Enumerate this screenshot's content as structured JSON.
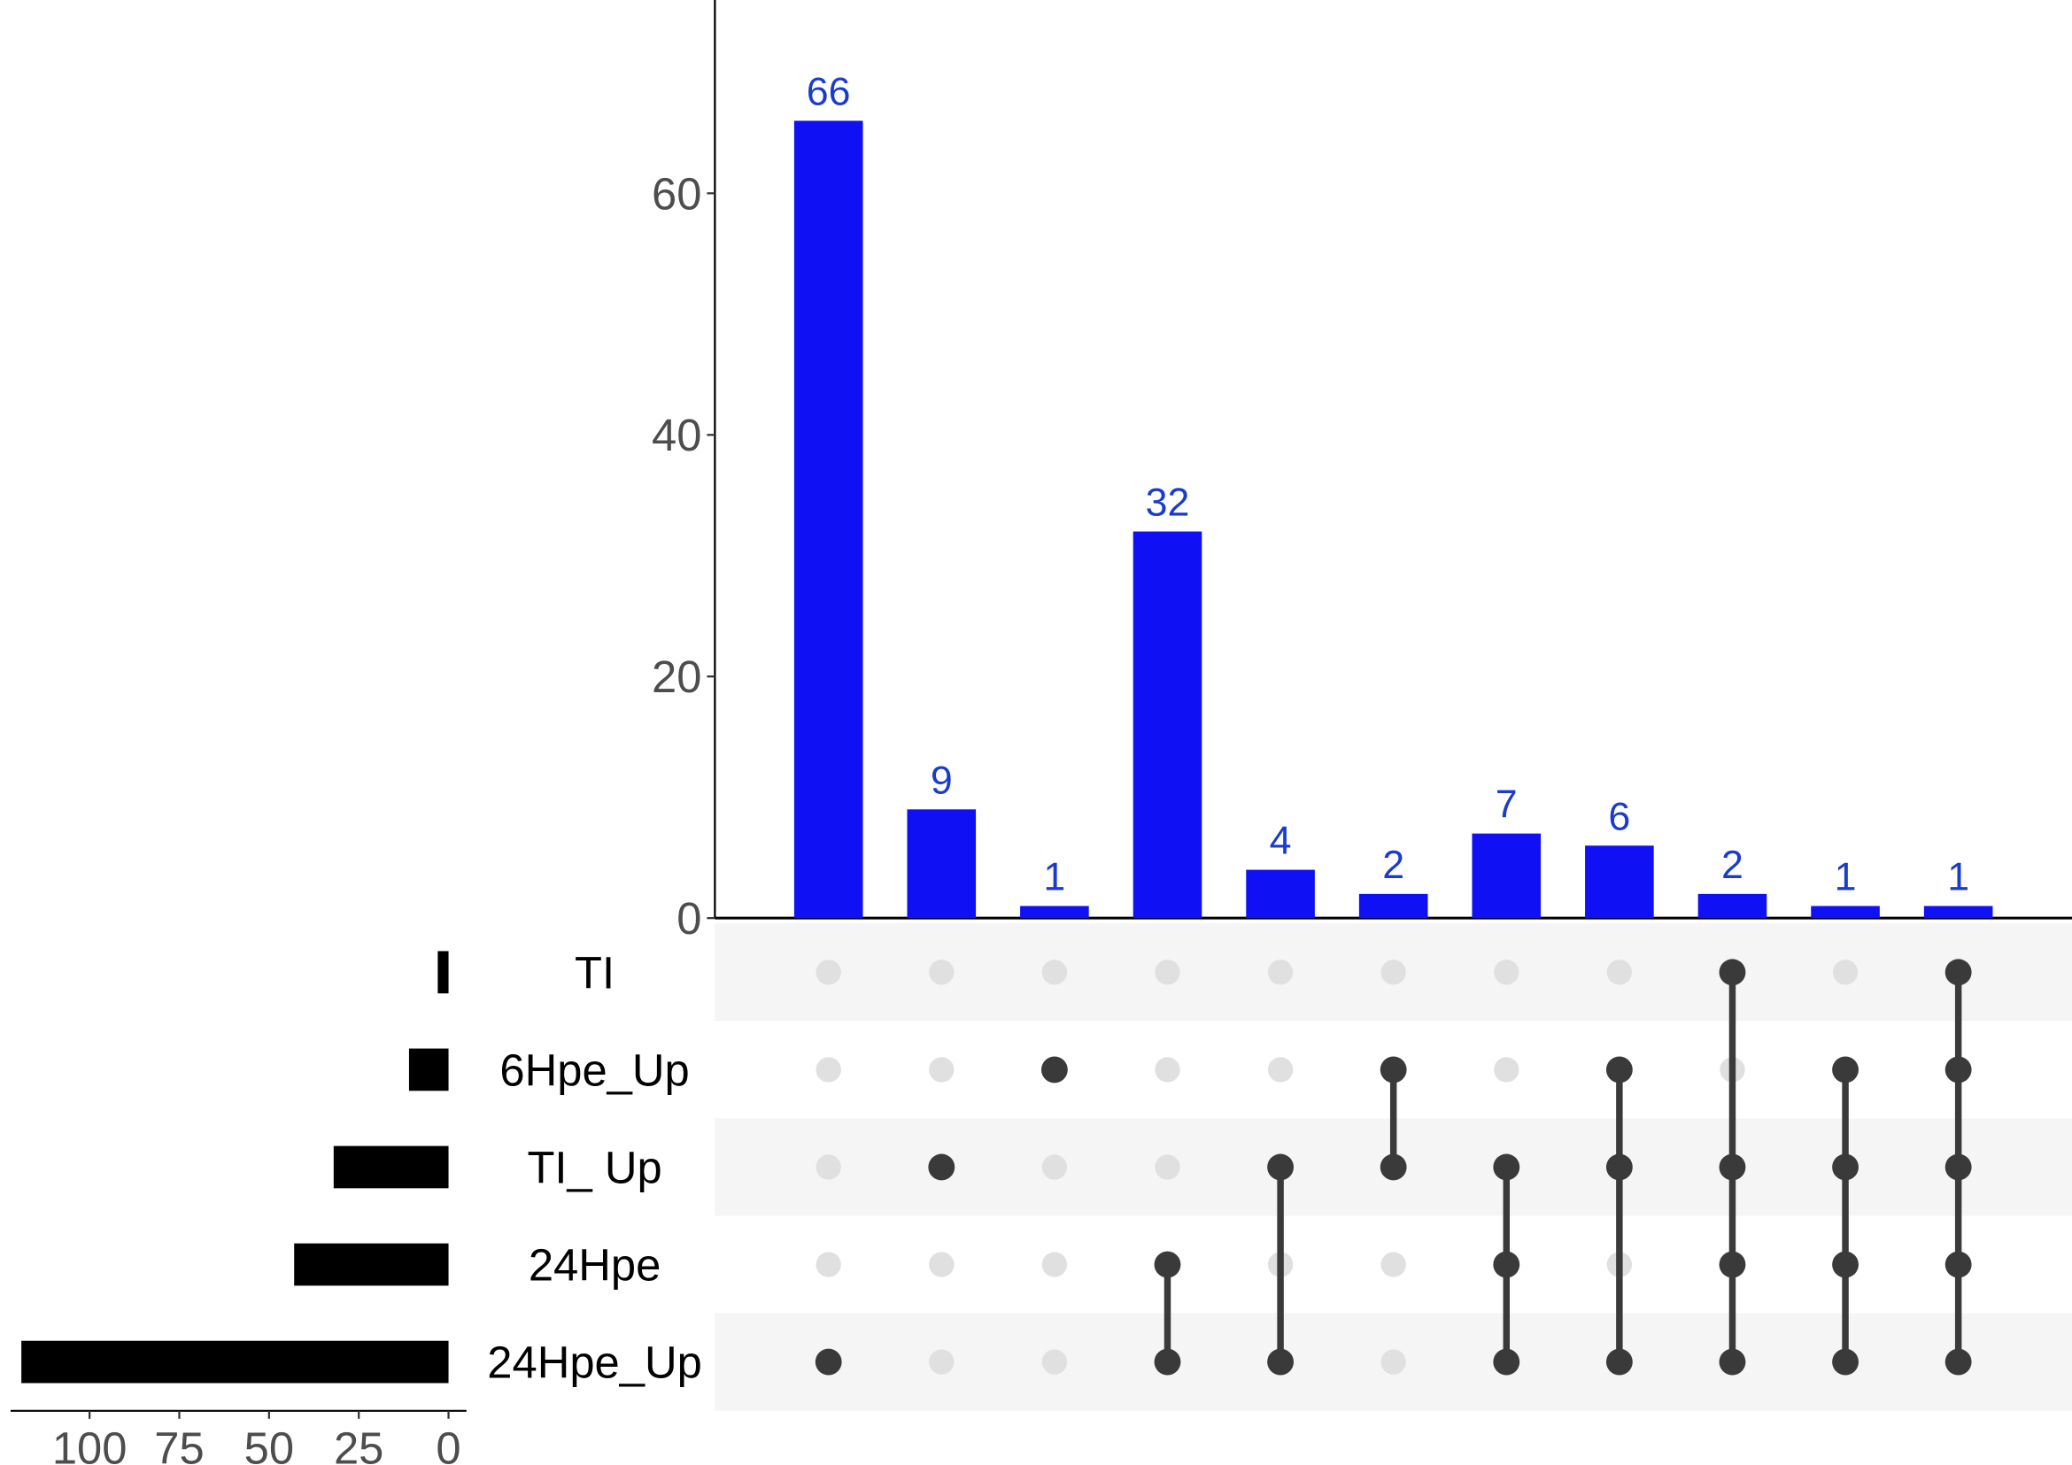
{
  "chart_data": {
    "type": "upset",
    "values": [
      66,
      9,
      1,
      32,
      4,
      2,
      7,
      6,
      2,
      1,
      1
    ],
    "bar_color": "#1010f5",
    "label_color": "#1a3ccc",
    "ylim": [
      0,
      76
    ],
    "yticks": [
      0,
      20,
      40,
      60
    ],
    "sets": [
      {
        "name": "TI",
        "size": 3
      },
      {
        "name": "6Hpe_Up",
        "size": 11
      },
      {
        "name": "TI_ Up",
        "size": 32
      },
      {
        "name": "24Hpe",
        "size": 43
      },
      {
        "name": "24Hpe_Up",
        "size": 119
      }
    ],
    "memberships": [
      [
        4
      ],
      [
        2
      ],
      [
        1
      ],
      [
        3,
        4
      ],
      [
        2,
        4
      ],
      [
        1,
        2
      ],
      [
        2,
        3,
        4
      ],
      [
        1,
        2,
        4
      ],
      [
        0,
        2,
        3,
        4
      ],
      [
        1,
        2,
        3,
        4
      ],
      [
        0,
        1,
        2,
        3,
        4
      ]
    ],
    "set_size_color": "#000000",
    "dot_color": "#3a3a3a",
    "empty_dot_color": "#e0e0e0",
    "xlim": [
      -5,
      122
    ],
    "xticks": [
      0,
      25,
      50,
      75,
      100
    ]
  }
}
